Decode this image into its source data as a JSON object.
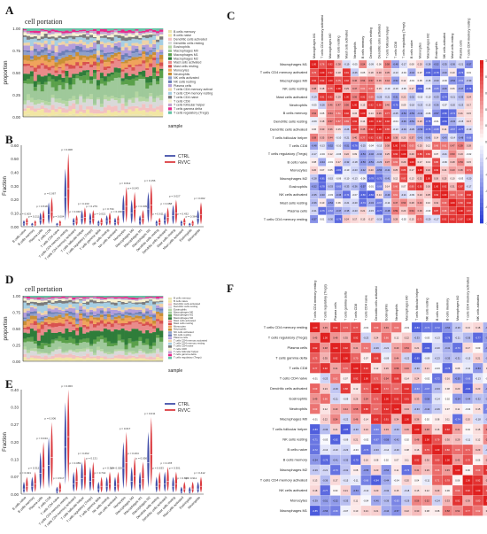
{
  "figure": {
    "labels": [
      "A",
      "B",
      "C",
      "D",
      "E",
      "F"
    ]
  },
  "panels": {
    "A": {
      "title": "cell portation",
      "ylabel": "proportion",
      "xlabel": "sample"
    },
    "B": {
      "ylabel": "Fraction",
      "legend": [
        "CTRL",
        "RVVC"
      ]
    },
    "D": {
      "title": "cell portation",
      "ylabel": "proportion",
      "xlabel": "sample"
    },
    "E": {
      "ylabel": "Fraction",
      "legend": [
        "CTRL",
        "RVVC"
      ]
    }
  },
  "colors": {
    "ctrl": "#2b3a9e",
    "rvvc": "#d7262b",
    "heat_neg": "#2c3ed6",
    "heat_mid": "#ffffff",
    "heat_pos": "#e0201f",
    "stack_palette": [
      "#e8e2b0",
      "#f2e6a3",
      "#f3c1c1",
      "#d9d9d9",
      "#b4d6a2",
      "#9fc99a",
      "#5aa04a",
      "#2f7d3a",
      "#e98b8b",
      "#d8514f",
      "#f0a35c",
      "#c98f35",
      "#8da0cb",
      "#6c7fb8",
      "#b39ddb",
      "#efd3a8",
      "#a6cee3",
      "#7b7b7b",
      "#f6f1d0",
      "#c2a5cf",
      "#e7298a",
      "#66c2a5"
    ]
  },
  "chart_data": [
    {
      "id": "A",
      "type": "area",
      "title": "cell portation",
      "xlabel": "sample",
      "ylabel": "proportion",
      "ylim": [
        0,
        1
      ],
      "yticks": [
        0.0,
        0.25,
        0.5,
        0.75,
        1.0
      ],
      "n_samples": 40,
      "legend": [
        "B cells memory",
        "B cells naive",
        "Dendritic cells activated",
        "Dendritic cells resting",
        "Eosinophils",
        "Macrophages M0",
        "Macrophages M1",
        "Macrophages M2",
        "Mast cells activated",
        "Mast cells resting",
        "Monocytes",
        "Neutrophils",
        "NK cells activated",
        "NK cells resting",
        "Plasma cells",
        "T cells CD4 memory activated",
        "T cells CD4 memory resting",
        "T cells CD4 naive",
        "T cells CD8",
        "T cells follicular helper",
        "T cells gamma delta",
        "T cells regulatory (Tregs)"
      ],
      "series_means": [
        0.02,
        0.04,
        0.05,
        0.06,
        0.04,
        0.18,
        0.06,
        0.05,
        0.07,
        0.03,
        0.05,
        0.04,
        0.03,
        0.03,
        0.05,
        0.04,
        0.05,
        0.03,
        0.03,
        0.02,
        0.02,
        0.02
      ]
    },
    {
      "id": "B",
      "type": "violin",
      "ylabel": "Fraction",
      "ylim": [
        0,
        0.6
      ],
      "legend": [
        "CTRL",
        "RVVC"
      ],
      "categories": [
        "B cells naive",
        "B cells memory",
        "Plasma cells",
        "T cells CD8",
        "T cells CD4 naive",
        "T cells CD4 memory resting",
        "T cells CD4 memory activated",
        "T cells follicular helper",
        "T cells regulatory (Tregs)",
        "T cells gamma delta",
        "NK cells resting",
        "NK cells activated",
        "Monocytes",
        "Macrophages M0",
        "Macrophages M1",
        "Macrophages M2",
        "Dendritic cells resting",
        "Dendritic cells activated",
        "Mast cells resting",
        "Mast cells activated",
        "Eosinophils",
        "Neutrophils"
      ],
      "ctrl_median": [
        0.02,
        0.01,
        0.05,
        0.09,
        0.01,
        0.22,
        0.03,
        0.06,
        0.05,
        0.02,
        0.04,
        0.03,
        0.12,
        0.1,
        0.04,
        0.13,
        0.02,
        0.05,
        0.08,
        0.02,
        0.01,
        0.06
      ],
      "rvvc_median": [
        0.03,
        0.02,
        0.06,
        0.11,
        0.02,
        0.28,
        0.04,
        0.07,
        0.06,
        0.03,
        0.05,
        0.04,
        0.15,
        0.13,
        0.06,
        0.16,
        0.03,
        0.07,
        0.1,
        0.03,
        0.02,
        0.09
      ],
      "pvalues": [
        "p = 0.003",
        "p = 0.211",
        "p = 0.518",
        "p = 0.067",
        "p = 0.004",
        "p = 0.008",
        "p = 0.046",
        "p = 0.133",
        "p = 0.279",
        "p = 0.021",
        "p = 0.734",
        "p = 0.182",
        "p = 0.012",
        "p = 0.043",
        "p = 0.009",
        "p = 0.156",
        "p = 0.611",
        "p = 0.088",
        "p = 0.027",
        "p = 0.432",
        "p = 0.364",
        "p = 0.002"
      ]
    },
    {
      "id": "C",
      "type": "heatmap",
      "vmin": -1,
      "vmax": 1,
      "legend_ticks": [
        "1",
        "0.8",
        "0.6",
        "0.4",
        "0.2",
        "0",
        "-0.2",
        "-0.4",
        "-0.6",
        "-0.8",
        "-1"
      ],
      "labels": [
        "Macrophages M1",
        "T cells CD4 memory activated",
        "Macrophages M0",
        "NK cells resting",
        "Mast cells activated",
        "Neutrophils",
        "B cells memory",
        "Dendritic cells resting",
        "Dendritic cells activated",
        "T cells follicular helper",
        "T cells CD8",
        "T cells regulatory (Tregs)",
        "B cells naive",
        "Monocytes",
        "Macrophages M2",
        "Eosinophils",
        "NK cells activated",
        "Mast cells resting",
        "Plasma cells",
        "T cells CD4 memory resting"
      ],
      "seed": 11
    },
    {
      "id": "D",
      "type": "area",
      "title": "cell portation",
      "xlabel": "sample",
      "ylabel": "proportion",
      "ylim": [
        0,
        1
      ],
      "yticks": [
        0.0,
        0.25,
        0.5,
        0.75,
        1.0
      ],
      "n_samples": 40,
      "legend": [
        "B cells memory",
        "B cells naive",
        "Dendritic cells activated",
        "Dendritic cells resting",
        "Eosinophils",
        "Macrophages M0",
        "Macrophages M1",
        "Macrophages M2",
        "Mast cells activated",
        "Mast cells resting",
        "Monocytes",
        "Neutrophils",
        "NK cells activated",
        "NK cells resting",
        "Plasma cells",
        "T cells CD4 memory activated",
        "T cells CD4 memory resting",
        "T cells CD4 naive",
        "T cells CD8",
        "T cells follicular helper",
        "T cells gamma delta",
        "T cells regulatory (Tregs)"
      ],
      "series_means": [
        0.02,
        0.03,
        0.04,
        0.05,
        0.03,
        0.1,
        0.06,
        0.14,
        0.08,
        0.04,
        0.05,
        0.04,
        0.03,
        0.03,
        0.05,
        0.04,
        0.06,
        0.03,
        0.03,
        0.02,
        0.02,
        0.02
      ]
    },
    {
      "id": "E",
      "type": "violin",
      "ylabel": "Fraction",
      "ylim": [
        0,
        0.4
      ],
      "legend": [
        "CTRL",
        "RVVC"
      ],
      "categories": [
        "B cells naive",
        "B cells memory",
        "Plasma cells",
        "T cells CD8",
        "T cells CD4 naive",
        "T cells CD4 memory resting",
        "T cells CD4 memory activated",
        "T cells follicular helper",
        "T cells regulatory (Tregs)",
        "T cells gamma delta",
        "NK cells resting",
        "NK cells activated",
        "Monocytes",
        "Macrophages M0",
        "Macrophages M1",
        "Macrophages M2",
        "Dendritic cells resting",
        "Dendritic cells activated",
        "Mast cells resting",
        "Mast cells activated",
        "Eosinophils",
        "Neutrophils"
      ],
      "ctrl_median": [
        0.02,
        0.03,
        0.08,
        0.11,
        0.01,
        0.18,
        0.04,
        0.06,
        0.05,
        0.02,
        0.03,
        0.03,
        0.1,
        0.05,
        0.04,
        0.12,
        0.03,
        0.04,
        0.03,
        0.01,
        0.01,
        0.02
      ],
      "rvvc_median": [
        0.03,
        0.04,
        0.1,
        0.14,
        0.02,
        0.22,
        0.05,
        0.07,
        0.06,
        0.03,
        0.04,
        0.04,
        0.12,
        0.07,
        0.06,
        0.15,
        0.04,
        0.05,
        0.04,
        0.02,
        0.02,
        0.03
      ],
      "pvalues": [
        "p = 0.021",
        "p = 0.312",
        "p = 0.044",
        "p = 0.006",
        "p = 0.517",
        "p = 0.003",
        "p = 0.089",
        "p = 0.262",
        "p = 0.131",
        "p = 0.742",
        "p = 0.388",
        "p = 0.025",
        "p = 0.017",
        "p = 0.204",
        "p = 0.056",
        "p = 0.011",
        "p = 0.633",
        "p = 0.478",
        "p = 0.301",
        "p = 0.865",
        "p = 0.911",
        "p = 0.412"
      ]
    },
    {
      "id": "F",
      "type": "heatmap",
      "vmin": -1,
      "vmax": 1,
      "legend_ticks": [
        "1",
        "0.8",
        "0.6",
        "0.4",
        "0.2",
        "0",
        "-0.2",
        "-0.4",
        "-0.6",
        "-0.8",
        "-1"
      ],
      "labels": [
        "T cells CD4 memory resting",
        "T cells regulatory (Tregs)",
        "Plasma cells",
        "T cells gamma delta",
        "T cells CD8",
        "T cells CD4 naive",
        "Dendritic cells activated",
        "Eosinophils",
        "Neutrophils",
        "Macrophages M0",
        "T cells follicular helper",
        "NK cells resting",
        "B cells naive",
        "B cells memory",
        "Macrophages M2",
        "T cells CD4 memory activated",
        "NK cells activated",
        "Monocytes",
        "Macrophages M1"
      ],
      "seed": 29
    }
  ]
}
